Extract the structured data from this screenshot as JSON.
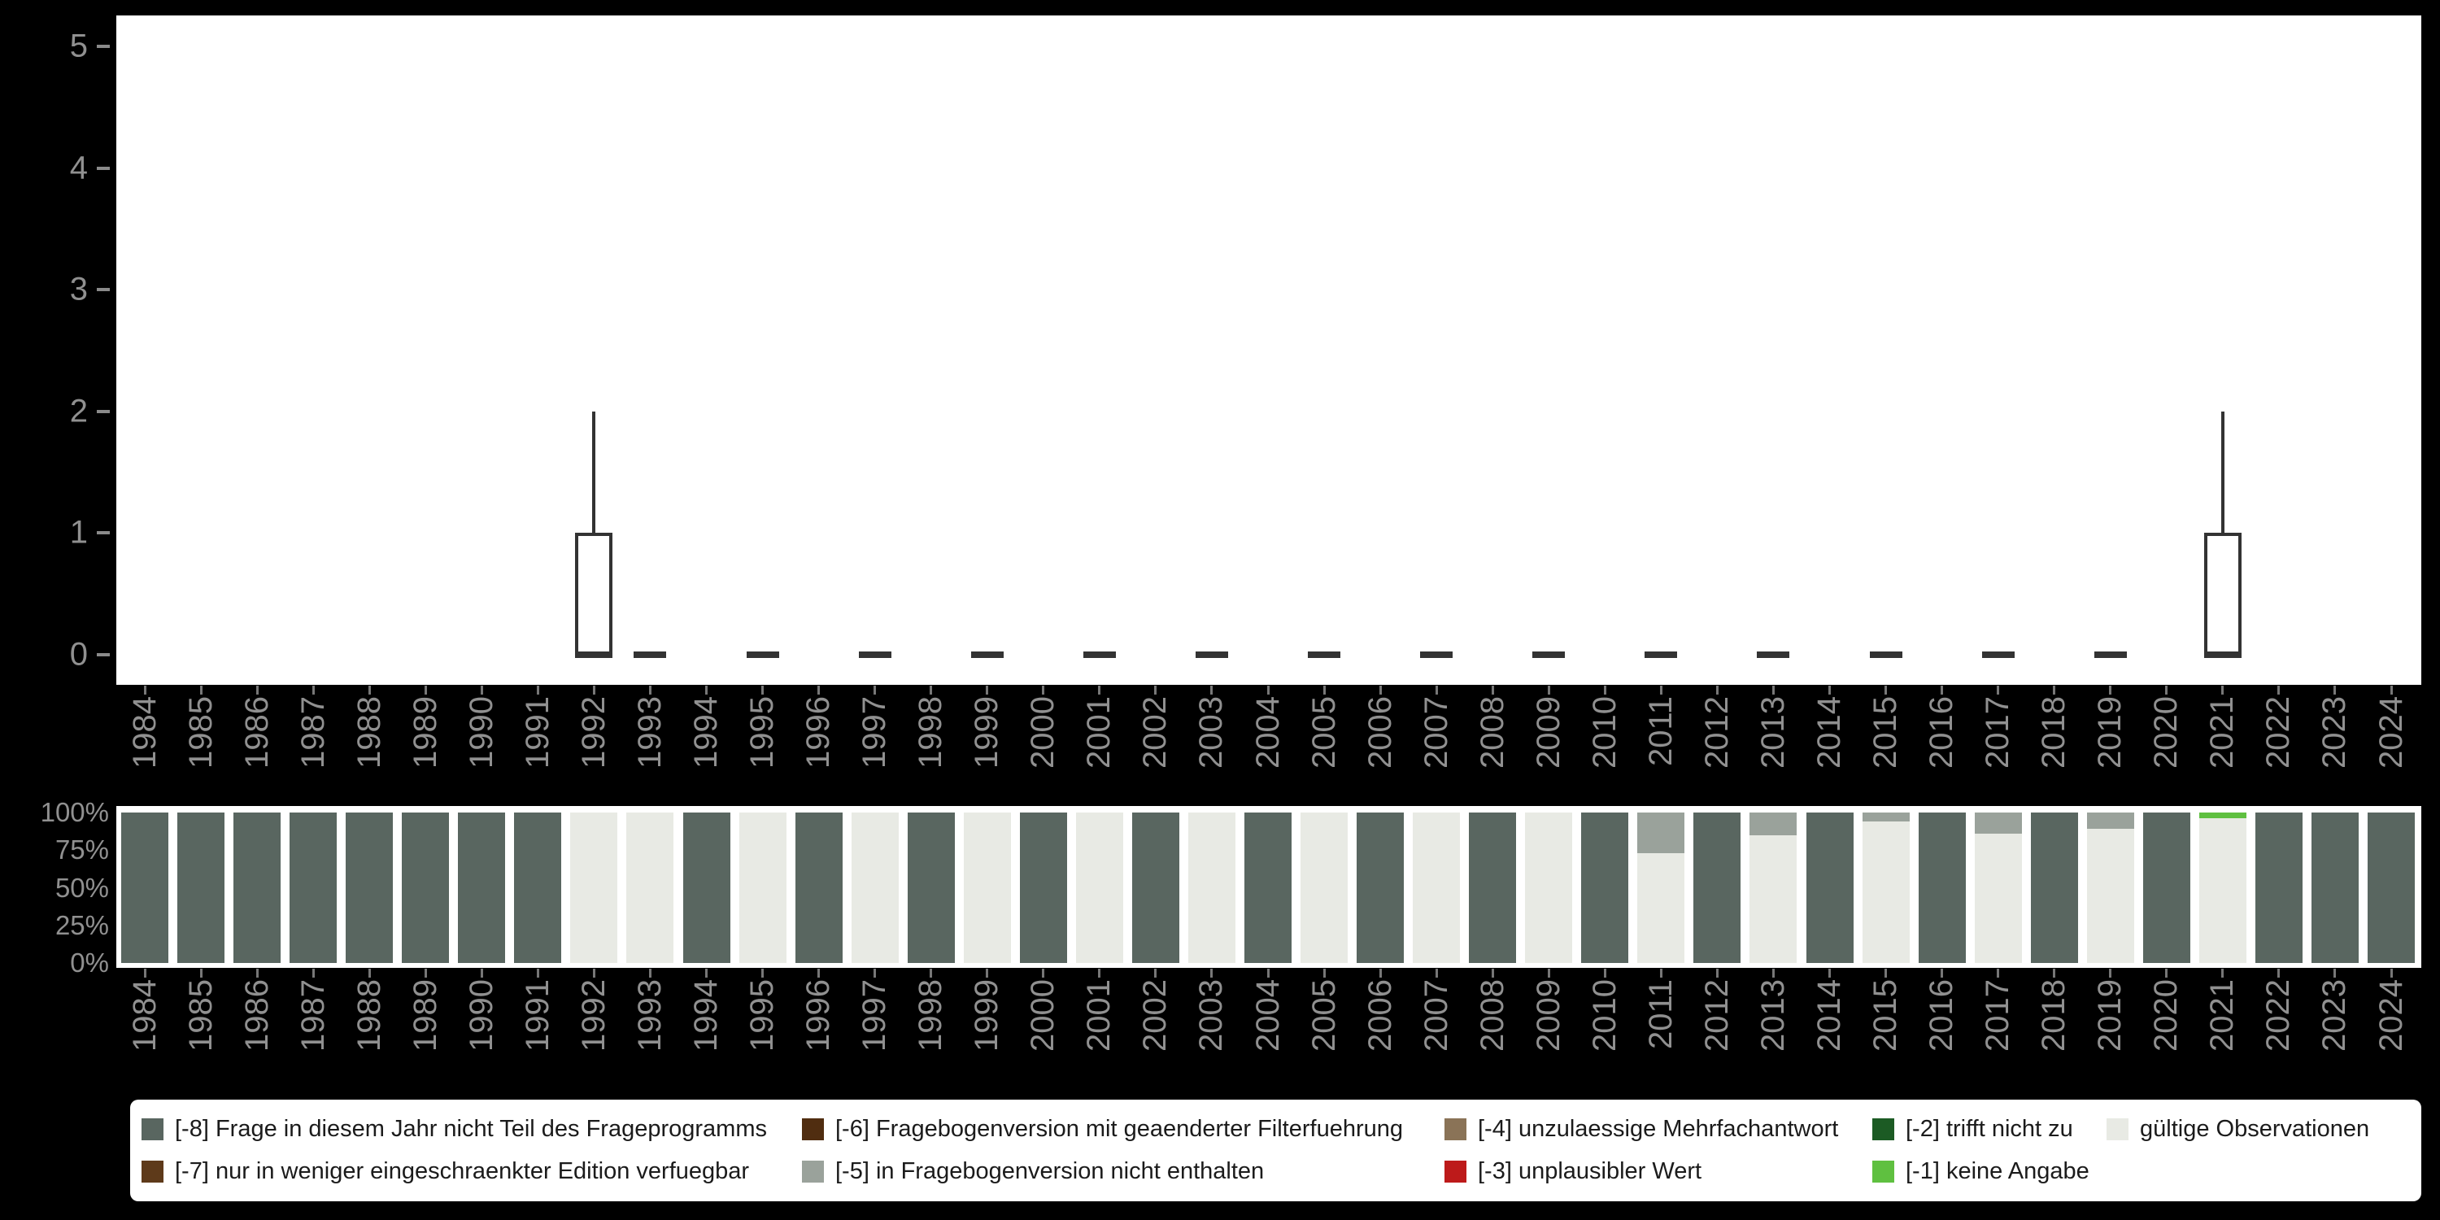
{
  "colors": {
    "background": "#000000",
    "panel": "#ffffff",
    "axis_text": "#909090",
    "legend_text": "#1b1b1b",
    "box_stroke": "#333333"
  },
  "legend": {
    "position": "bottom",
    "items": [
      {
        "code": "-8",
        "label": "[-8] Frage in diesem Jahr nicht Teil des Frageprogramms",
        "color": "#596660"
      },
      {
        "code": "-7",
        "label": "[-7] nur in weniger eingeschraenkter Edition verfuegbar",
        "color": "#5e3a1a"
      },
      {
        "code": "-6",
        "label": "[-6] Fragebogenversion mit geaenderter Filterfuehrung",
        "color": "#502d10"
      },
      {
        "code": "-5",
        "label": "[-5] in Fragebogenversion nicht enthalten",
        "color": "#9aa29b"
      },
      {
        "code": "-4",
        "label": "[-4] unzulaessige Mehrfachantwort",
        "color": "#8a7357"
      },
      {
        "code": "-3",
        "label": "[-3] unplausibler Wert",
        "color": "#bd1a1a"
      },
      {
        "code": "-2",
        "label": "[-2] trifft nicht zu",
        "color": "#1c5b24"
      },
      {
        "code": "-1",
        "label": "[-1] keine Angabe",
        "color": "#5fc040"
      },
      {
        "code": "valid",
        "label": "gültige Observationen",
        "color": "#e8eae4"
      }
    ]
  },
  "chart_data": [
    {
      "type": "boxplot",
      "title": "",
      "xlabel": "",
      "ylabel": "",
      "ylim": [
        0,
        5
      ],
      "yticks": [
        0,
        1,
        2,
        3,
        4,
        5
      ],
      "grid": false,
      "categories": [
        "1984",
        "1985",
        "1986",
        "1987",
        "1988",
        "1989",
        "1990",
        "1991",
        "1992",
        "1993",
        "1994",
        "1995",
        "1996",
        "1997",
        "1998",
        "1999",
        "2000",
        "2001",
        "2002",
        "2003",
        "2004",
        "2005",
        "2006",
        "2007",
        "2008",
        "2009",
        "2010",
        "2011",
        "2012",
        "2013",
        "2014",
        "2015",
        "2016",
        "2017",
        "2018",
        "2019",
        "2020",
        "2021",
        "2022",
        "2023",
        "2024"
      ],
      "boxes": [
        {
          "year": "1992",
          "min": 0,
          "q1": 0,
          "median": 0,
          "q3": 1,
          "max": 2
        },
        {
          "year": "1993",
          "min": 0,
          "q1": 0,
          "median": 0,
          "q3": 0,
          "max": 0
        },
        {
          "year": "1995",
          "min": 0,
          "q1": 0,
          "median": 0,
          "q3": 0,
          "max": 0
        },
        {
          "year": "1997",
          "min": 0,
          "q1": 0,
          "median": 0,
          "q3": 0,
          "max": 0
        },
        {
          "year": "1999",
          "min": 0,
          "q1": 0,
          "median": 0,
          "q3": 0,
          "max": 0
        },
        {
          "year": "2001",
          "min": 0,
          "q1": 0,
          "median": 0,
          "q3": 0,
          "max": 0
        },
        {
          "year": "2003",
          "min": 0,
          "q1": 0,
          "median": 0,
          "q3": 0,
          "max": 0
        },
        {
          "year": "2005",
          "min": 0,
          "q1": 0,
          "median": 0,
          "q3": 0,
          "max": 0
        },
        {
          "year": "2007",
          "min": 0,
          "q1": 0,
          "median": 0,
          "q3": 0,
          "max": 0
        },
        {
          "year": "2009",
          "min": 0,
          "q1": 0,
          "median": 0,
          "q3": 0,
          "max": 0
        },
        {
          "year": "2011",
          "min": 0,
          "q1": 0,
          "median": 0,
          "q3": 0,
          "max": 0
        },
        {
          "year": "2013",
          "min": 0,
          "q1": 0,
          "median": 0,
          "q3": 0,
          "max": 0
        },
        {
          "year": "2015",
          "min": 0,
          "q1": 0,
          "median": 0,
          "q3": 0,
          "max": 0
        },
        {
          "year": "2017",
          "min": 0,
          "q1": 0,
          "median": 0,
          "q3": 0,
          "max": 0
        },
        {
          "year": "2019",
          "min": 0,
          "q1": 0,
          "median": 0,
          "q3": 0,
          "max": 0
        },
        {
          "year": "2021",
          "min": 0,
          "q1": 0,
          "median": 0,
          "q3": 1,
          "max": 2
        }
      ]
    },
    {
      "type": "bar",
      "stacked": true,
      "unit": "percent",
      "ylim": [
        0,
        100
      ],
      "yticks": [
        0,
        25,
        50,
        75,
        100
      ],
      "ytick_labels": [
        "0%",
        "25%",
        "50%",
        "75%",
        "100%"
      ],
      "categories": [
        "1984",
        "1985",
        "1986",
        "1987",
        "1988",
        "1989",
        "1990",
        "1991",
        "1992",
        "1993",
        "1994",
        "1995",
        "1996",
        "1997",
        "1998",
        "1999",
        "2000",
        "2001",
        "2002",
        "2003",
        "2004",
        "2005",
        "2006",
        "2007",
        "2008",
        "2009",
        "2010",
        "2011",
        "2012",
        "2013",
        "2014",
        "2015",
        "2016",
        "2017",
        "2018",
        "2019",
        "2020",
        "2021",
        "2022",
        "2023",
        "2024"
      ],
      "series": [
        {
          "code": "valid",
          "name": "gültige Observationen",
          "values": [
            0,
            0,
            0,
            0,
            0,
            0,
            0,
            0,
            100,
            100,
            0,
            100,
            0,
            100,
            0,
            100,
            0,
            100,
            0,
            100,
            0,
            100,
            0,
            100,
            0,
            100,
            0,
            73,
            0,
            85,
            0,
            94,
            0,
            86,
            0,
            89,
            0,
            96,
            0,
            0,
            0
          ]
        },
        {
          "code": "-1",
          "name": "[-1] keine Angabe",
          "values": [
            0,
            0,
            0,
            0,
            0,
            0,
            0,
            0,
            0,
            0,
            0,
            0,
            0,
            0,
            0,
            0,
            0,
            0,
            0,
            0,
            0,
            0,
            0,
            0,
            0,
            0,
            0,
            0,
            0,
            0,
            0,
            0,
            0,
            0,
            0,
            0,
            0,
            4,
            0,
            0,
            0
          ]
        },
        {
          "code": "-5",
          "name": "[-5] in Fragebogenversion nicht enthalten",
          "values": [
            0,
            0,
            0,
            0,
            0,
            0,
            0,
            0,
            0,
            0,
            0,
            0,
            0,
            0,
            0,
            0,
            0,
            0,
            0,
            0,
            0,
            0,
            0,
            0,
            0,
            0,
            0,
            27,
            0,
            15,
            0,
            6,
            0,
            14,
            0,
            11,
            0,
            0,
            0,
            0,
            0
          ]
        },
        {
          "code": "-8",
          "name": "[-8] Frage in diesem Jahr nicht Teil des Frageprogramms",
          "values": [
            100,
            100,
            100,
            100,
            100,
            100,
            100,
            100,
            0,
            0,
            100,
            0,
            100,
            0,
            100,
            0,
            100,
            0,
            100,
            0,
            100,
            0,
            100,
            0,
            100,
            0,
            100,
            0,
            100,
            0,
            100,
            0,
            100,
            0,
            100,
            0,
            100,
            0,
            100,
            100,
            100
          ]
        }
      ]
    }
  ]
}
